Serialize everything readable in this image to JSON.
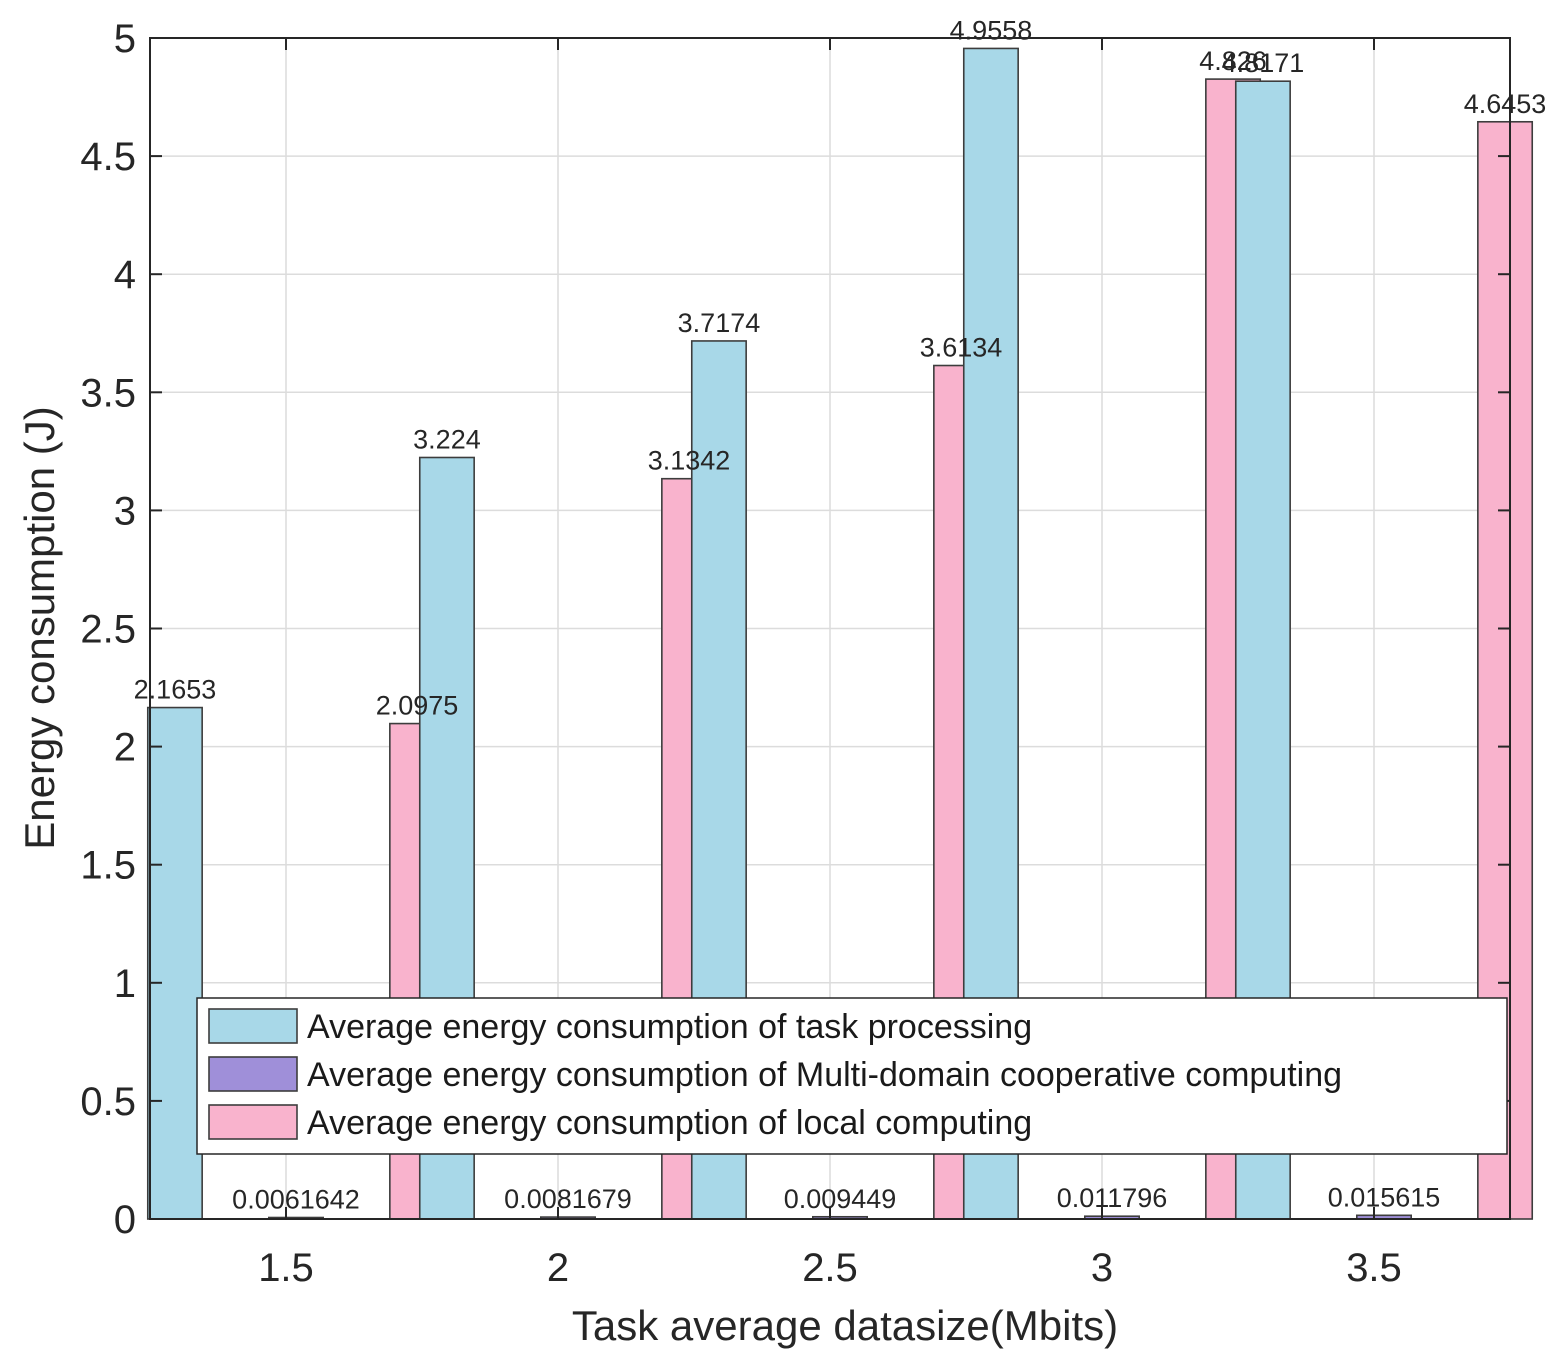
{
  "chart_data": {
    "type": "bar",
    "title": "",
    "xlabel": "Task average datasize(Mbits)",
    "ylabel": "Energy consumption (J)",
    "ylim": [
      0,
      5
    ],
    "yticks": [
      0,
      0.5,
      1,
      1.5,
      2,
      2.5,
      3,
      3.5,
      4,
      4.5,
      5
    ],
    "ytick_labels": [
      "0",
      "0.5",
      "1",
      "1.5",
      "2",
      "2.5",
      "3",
      "3.5",
      "4",
      "4.5",
      "5"
    ],
    "categories": [
      "1.5",
      "2",
      "2.5",
      "3",
      "3.5"
    ],
    "grid": true,
    "legend_position": "bottom-center",
    "series": [
      {
        "name": "Average energy consumption of task processing",
        "color": "#a8d8e8",
        "values": [
          2.1653,
          3.224,
          3.7174,
          4.9558,
          4.8171
        ],
        "labels": [
          "2.1653",
          "3.224",
          "3.7174",
          "4.9558",
          "4.8171"
        ]
      },
      {
        "name": "Average energy consumption of Multi-domain cooperative computing",
        "color": "#9f8fd9",
        "values": [
          0.0061642,
          0.0081679,
          0.009449,
          0.011796,
          0.015615
        ],
        "labels": [
          "0.0061642",
          "0.0081679",
          "0.009449",
          "0.011796",
          "0.015615"
        ]
      },
      {
        "name": "Average energy consumption of local computing",
        "color": "#f9b3cd",
        "values": [
          2.0975,
          3.1342,
          3.6134,
          4.826,
          4.6453
        ],
        "labels": [
          "2.0975",
          "3.1342",
          "3.6134",
          "4.826",
          "4.6453"
        ]
      }
    ]
  }
}
